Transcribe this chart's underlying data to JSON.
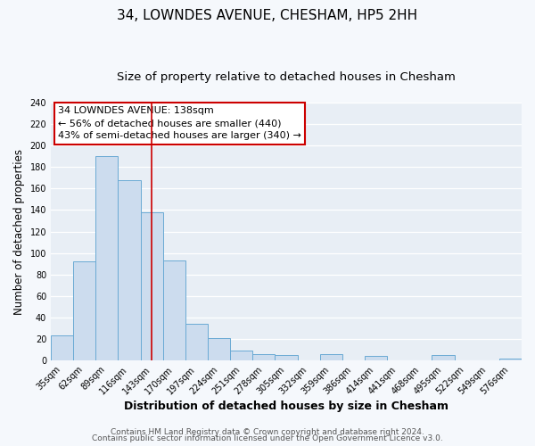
{
  "title": "34, LOWNDES AVENUE, CHESHAM, HP5 2HH",
  "subtitle": "Size of property relative to detached houses in Chesham",
  "xlabel": "Distribution of detached houses by size in Chesham",
  "ylabel": "Number of detached properties",
  "bar_labels": [
    "35sqm",
    "62sqm",
    "89sqm",
    "116sqm",
    "143sqm",
    "170sqm",
    "197sqm",
    "224sqm",
    "251sqm",
    "278sqm",
    "305sqm",
    "332sqm",
    "359sqm",
    "386sqm",
    "414sqm",
    "441sqm",
    "468sqm",
    "495sqm",
    "522sqm",
    "549sqm",
    "576sqm"
  ],
  "bar_values": [
    23,
    92,
    190,
    168,
    138,
    93,
    34,
    21,
    9,
    6,
    5,
    0,
    6,
    0,
    4,
    0,
    0,
    5,
    0,
    0,
    2
  ],
  "bar_color": "#ccdcee",
  "bar_edge_color": "#6aaad4",
  "vline_x_index": 4,
  "vline_color": "#cc0000",
  "annotation_title": "34 LOWNDES AVENUE: 138sqm",
  "annotation_line1": "← 56% of detached houses are smaller (440)",
  "annotation_line2": "43% of semi-detached houses are larger (340) →",
  "annotation_box_facecolor": "#ffffff",
  "annotation_box_edgecolor": "#cc0000",
  "ylim": [
    0,
    240
  ],
  "yticks": [
    0,
    20,
    40,
    60,
    80,
    100,
    120,
    140,
    160,
    180,
    200,
    220,
    240
  ],
  "footer1": "Contains HM Land Registry data © Crown copyright and database right 2024.",
  "footer2": "Contains public sector information licensed under the Open Government Licence v3.0.",
  "fig_facecolor": "#f5f8fc",
  "axes_facecolor": "#e8eef5",
  "grid_color": "#ffffff",
  "title_fontsize": 11,
  "subtitle_fontsize": 9.5,
  "xlabel_fontsize": 9,
  "ylabel_fontsize": 8.5,
  "tick_fontsize": 7,
  "annot_fontsize": 8,
  "footer_fontsize": 6.5
}
